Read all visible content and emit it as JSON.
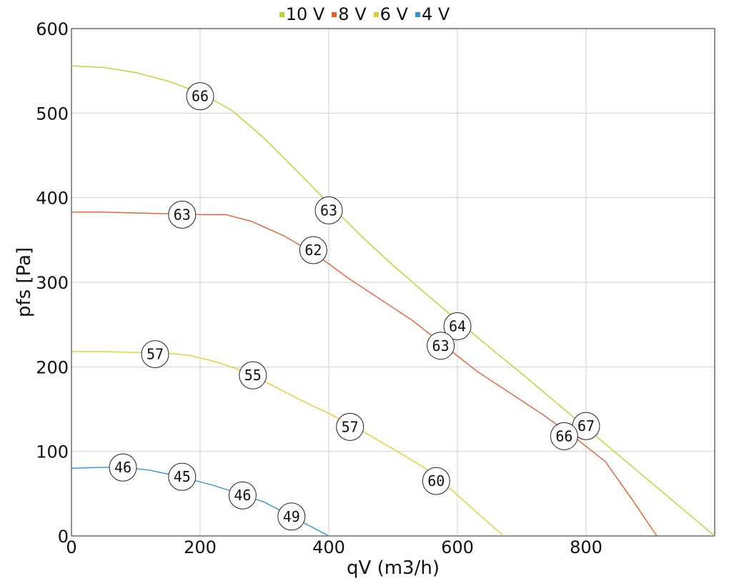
{
  "chart_data": {
    "type": "line",
    "xlabel": "qV (m3/h)",
    "ylabel": "pfs [Pa]",
    "xlim": [
      0,
      1000
    ],
    "ylim": [
      0,
      600
    ],
    "xticks": [
      "0",
      "200",
      "400",
      "600",
      "800"
    ],
    "yticks": [
      "0",
      "100",
      "200",
      "300",
      "400",
      "500",
      "600"
    ],
    "grid": true,
    "legend_position": "top-center",
    "series": [
      {
        "name": "10 V",
        "color": "#b5d62a",
        "points": [
          [
            0,
            556
          ],
          [
            50,
            554
          ],
          [
            100,
            548
          ],
          [
            150,
            538
          ],
          [
            200,
            524
          ],
          [
            250,
            503
          ],
          [
            300,
            470
          ],
          [
            350,
            432
          ],
          [
            400,
            393
          ],
          [
            450,
            355
          ],
          [
            500,
            320
          ],
          [
            550,
            287
          ],
          [
            600,
            255
          ],
          [
            650,
            223
          ],
          [
            700,
            192
          ],
          [
            750,
            160
          ],
          [
            800,
            128
          ],
          [
            850,
            96
          ],
          [
            900,
            64
          ],
          [
            950,
            32
          ],
          [
            1000,
            0
          ]
        ],
        "markers": [
          {
            "x": 200,
            "y": 520,
            "label": "66"
          },
          {
            "x": 400,
            "y": 385,
            "label": "63"
          },
          {
            "x": 600,
            "y": 248,
            "label": "64"
          },
          {
            "x": 800,
            "y": 130,
            "label": "67"
          }
        ]
      },
      {
        "name": "8 V",
        "color": "#e8602c",
        "points": [
          [
            0,
            383
          ],
          [
            50,
            383
          ],
          [
            100,
            382
          ],
          [
            150,
            381
          ],
          [
            200,
            380
          ],
          [
            240,
            380
          ],
          [
            280,
            372
          ],
          [
            330,
            355
          ],
          [
            380,
            333
          ],
          [
            430,
            305
          ],
          [
            480,
            280
          ],
          [
            530,
            255
          ],
          [
            580,
            225
          ],
          [
            630,
            195
          ],
          [
            680,
            170
          ],
          [
            730,
            145
          ],
          [
            780,
            118
          ],
          [
            830,
            88
          ],
          [
            870,
            45
          ],
          [
            910,
            0
          ]
        ],
        "markers": [
          {
            "x": 172,
            "y": 380,
            "label": "63"
          },
          {
            "x": 376,
            "y": 338,
            "label": "62"
          },
          {
            "x": 574,
            "y": 225,
            "label": "63"
          },
          {
            "x": 766,
            "y": 118,
            "label": "66"
          }
        ]
      },
      {
        "name": "6 V",
        "color": "#e0cf2e",
        "points": [
          [
            0,
            218
          ],
          [
            50,
            218
          ],
          [
            100,
            217
          ],
          [
            150,
            216
          ],
          [
            180,
            214
          ],
          [
            220,
            207
          ],
          [
            260,
            197
          ],
          [
            300,
            183
          ],
          [
            350,
            163
          ],
          [
            400,
            145
          ],
          [
            450,
            125
          ],
          [
            500,
            103
          ],
          [
            550,
            80
          ],
          [
            590,
            55
          ],
          [
            630,
            28
          ],
          [
            672,
            0
          ]
        ],
        "markers": [
          {
            "x": 130,
            "y": 215,
            "label": "57"
          },
          {
            "x": 282,
            "y": 190,
            "label": "55"
          },
          {
            "x": 433,
            "y": 129,
            "label": "57"
          },
          {
            "x": 567,
            "y": 65,
            "label": "60"
          }
        ]
      },
      {
        "name": "4 V",
        "color": "#2f96d8",
        "points": [
          [
            0,
            80
          ],
          [
            40,
            81
          ],
          [
            80,
            81
          ],
          [
            120,
            78
          ],
          [
            170,
            70
          ],
          [
            220,
            60
          ],
          [
            265,
            49
          ],
          [
            300,
            40
          ],
          [
            340,
            24
          ],
          [
            370,
            12
          ],
          [
            400,
            0
          ]
        ],
        "markers": [
          {
            "x": 80,
            "y": 81,
            "label": "46"
          },
          {
            "x": 172,
            "y": 70,
            "label": "45"
          },
          {
            "x": 266,
            "y": 48,
            "label": "46"
          },
          {
            "x": 342,
            "y": 23,
            "label": "49"
          }
        ]
      }
    ]
  }
}
